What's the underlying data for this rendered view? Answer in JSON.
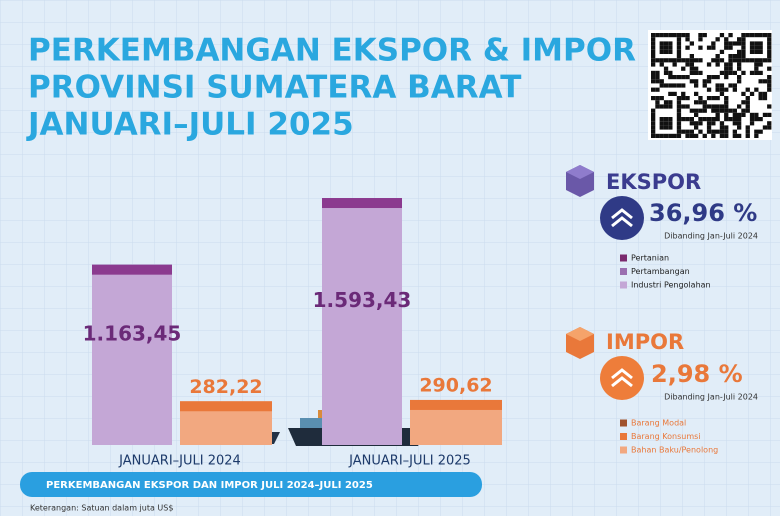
{
  "chart_data": {
    "type": "bar",
    "title": [
      "PERKEMBANGAN EKSPOR & IMPOR",
      "PROVINSI SUMATERA BARAT",
      "JANUARI–JULI 2025"
    ],
    "categories": [
      "JANUARI–JULI 2024",
      "JANUARI–JULI 2025"
    ],
    "series": [
      {
        "name": "EKSPOR",
        "color": "#c4a7d6",
        "cap_color": "#8b3a8f",
        "values": [
          1163.45,
          1593.43
        ],
        "value_labels": [
          "1.163,45",
          "1.593,43"
        ]
      },
      {
        "name": "IMPOR",
        "color": "#f2a880",
        "cap_color": "#e9783a",
        "values": [
          282.22,
          290.62
        ],
        "value_labels": [
          "282,22",
          "290,62"
        ]
      }
    ],
    "ylim": [
      0,
      1800
    ],
    "banner": "PERKEMBANGAN EKSPOR DAN IMPOR JULI 2024–JULI 2025",
    "note": "Keterangan: Satuan dalam juta US$"
  },
  "ekspor_panel": {
    "change": "36,96 %",
    "comparison": "Dibanding Jan-Juli 2024",
    "legend": [
      {
        "name": "Pertanian",
        "color": "#7a2a6e"
      },
      {
        "name": "Pertambangan",
        "color": "#9a6fb0"
      },
      {
        "name": "Industri Pengolahan",
        "color": "#c4a7d6"
      }
    ]
  },
  "impor_panel": {
    "change": "2,98 %",
    "comparison": "Dibanding Jan-Juli 2024",
    "legend": [
      {
        "name": "Barang Modal",
        "color": "#a0522d"
      },
      {
        "name": "Barang Konsumsi",
        "color": "#e9783a"
      },
      {
        "name": "Bahan Baku/Penolong",
        "color": "#f2a880"
      }
    ]
  }
}
